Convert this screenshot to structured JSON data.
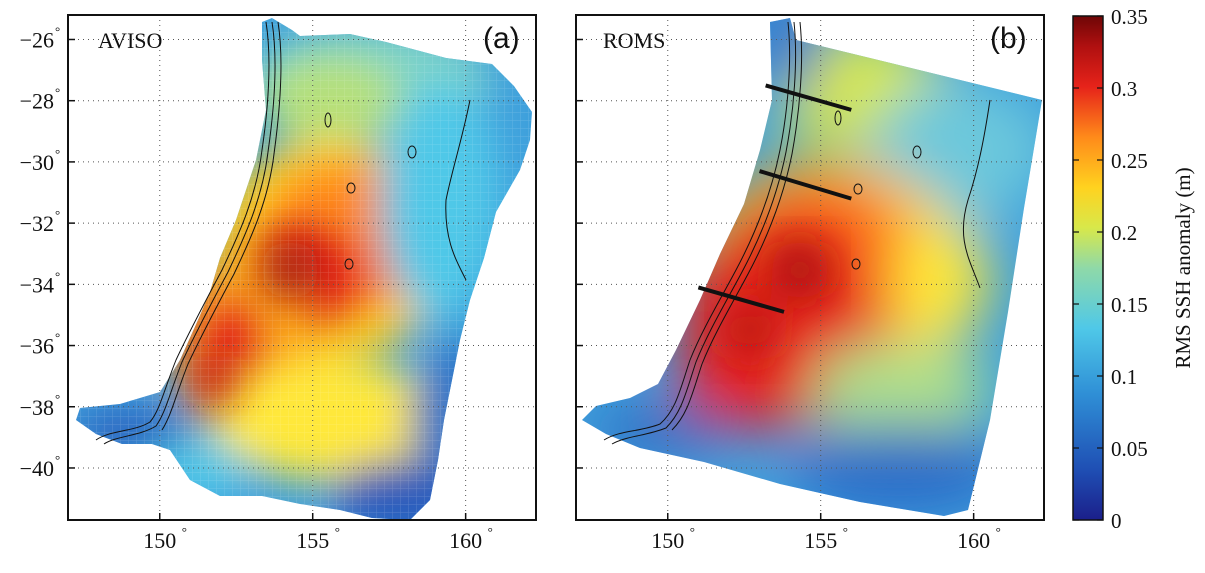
{
  "chart_data": [
    {
      "type": "heatmap",
      "panel_tag": "(a)",
      "label": "AVISO",
      "xticks": [
        "150",
        "155",
        "160"
      ],
      "yticks": [
        "-26",
        "-28",
        "-30",
        "-32",
        "-34",
        "-36",
        "-38",
        "-40"
      ],
      "xlim": [
        147,
        162.3
      ],
      "ylim": [
        -41.7,
        -25.2
      ],
      "grid": true,
      "hotspots": [
        {
          "lon": 154.0,
          "lat": -33.8,
          "rms": 0.34
        },
        {
          "lon": 152.3,
          "lat": -36.8,
          "rms": 0.31
        },
        {
          "lon": 155.5,
          "lat": -31.5,
          "rms": 0.28
        },
        {
          "lon": 155.3,
          "lat": -27.8,
          "rms": 0.18
        }
      ]
    },
    {
      "type": "heatmap",
      "panel_tag": "(b)",
      "label": "ROMS",
      "xticks": [
        "150",
        "155",
        "160"
      ],
      "xlim": [
        147,
        162.3
      ],
      "ylim": [
        -41.7,
        -25.2
      ],
      "grid": true,
      "sections": [
        {
          "from": [
            153.2,
            -27.5
          ],
          "to": [
            156.0,
            -28.3
          ]
        },
        {
          "from": [
            153.0,
            -30.3
          ],
          "to": [
            156.0,
            -31.2
          ]
        },
        {
          "from": [
            151.0,
            -34.1
          ],
          "to": [
            153.8,
            -34.9
          ]
        }
      ],
      "hotspots": [
        {
          "lon": 154.2,
          "lat": -33.5,
          "rms": 0.34
        },
        {
          "lon": 152.5,
          "lat": -35.5,
          "rms": 0.33
        },
        {
          "lon": 151.8,
          "lat": -37.0,
          "rms": 0.3
        },
        {
          "lon": 155.2,
          "lat": -28.2,
          "rms": 0.2
        }
      ]
    }
  ],
  "colorbar": {
    "title": "RMS SSH anomaly (m)",
    "ticks": [
      "0",
      "0.05",
      "0.1",
      "0.15",
      "0.2",
      "0.25",
      "0.3",
      "0.35"
    ],
    "range": [
      0,
      0.35
    ],
    "colormap": [
      "#1b1f8a",
      "#1f4fb4",
      "#2f8fd6",
      "#4fc8e8",
      "#8fd9a8",
      "#d8e84a",
      "#ffd21f",
      "#ff8a1a",
      "#e6231a",
      "#b01010",
      "#6e0606"
    ]
  }
}
